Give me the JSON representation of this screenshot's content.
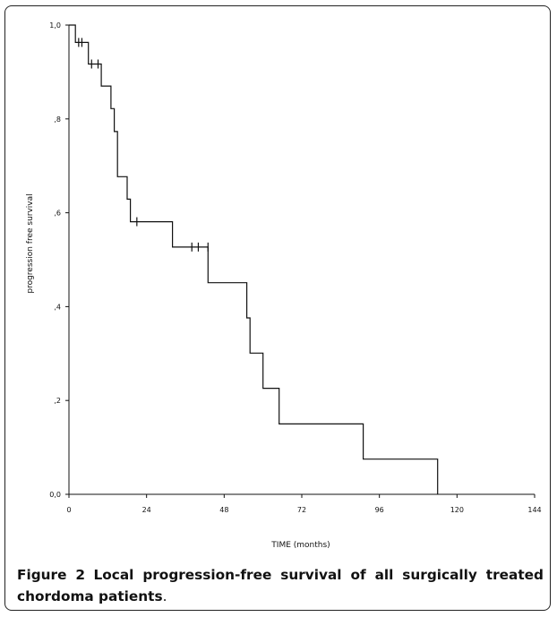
{
  "figure": {
    "label": "Figure 2",
    "caption": "Local progression-free survival of all surgically treated chordoma patients",
    "caption_end": "."
  },
  "chart_data": {
    "type": "line",
    "step": true,
    "xlabel": "TIME (months)",
    "ylabel": "progression free survival",
    "xlim": [
      0,
      144
    ],
    "ylim": [
      0,
      1.0
    ],
    "x_ticks": [
      0,
      24,
      48,
      72,
      96,
      120,
      144
    ],
    "x_tick_labels": [
      "0",
      "24",
      "48",
      "72",
      "96",
      "120",
      "144"
    ],
    "y_ticks": [
      0,
      0.2,
      0.4,
      0.6,
      0.8,
      1.0
    ],
    "y_tick_labels": [
      "0,0",
      ",2",
      ",4",
      ",6",
      ",8",
      "1,0"
    ],
    "grid": false,
    "series": [
      {
        "x": [
          0,
          2,
          2,
          6,
          6,
          10,
          10,
          13,
          13,
          14,
          14,
          15,
          15,
          18,
          18,
          19,
          19,
          32,
          32,
          43,
          43,
          55,
          55,
          56,
          56,
          60,
          60,
          65,
          65,
          91,
          91,
          114,
          114
        ],
        "y": [
          1.0,
          1.0,
          0.963,
          0.963,
          0.917,
          0.917,
          0.87,
          0.87,
          0.822,
          0.822,
          0.773,
          0.773,
          0.677,
          0.677,
          0.629,
          0.629,
          0.581,
          0.581,
          0.527,
          0.527,
          0.451,
          0.451,
          0.376,
          0.376,
          0.301,
          0.301,
          0.226,
          0.226,
          0.15,
          0.15,
          0.075,
          0.075,
          0.0
        ]
      }
    ],
    "censored": {
      "x": [
        3,
        4,
        7,
        9,
        21,
        38,
        40,
        43
      ],
      "y": [
        0.963,
        0.963,
        0.917,
        0.917,
        0.581,
        0.527,
        0.527,
        0.527
      ]
    }
  }
}
